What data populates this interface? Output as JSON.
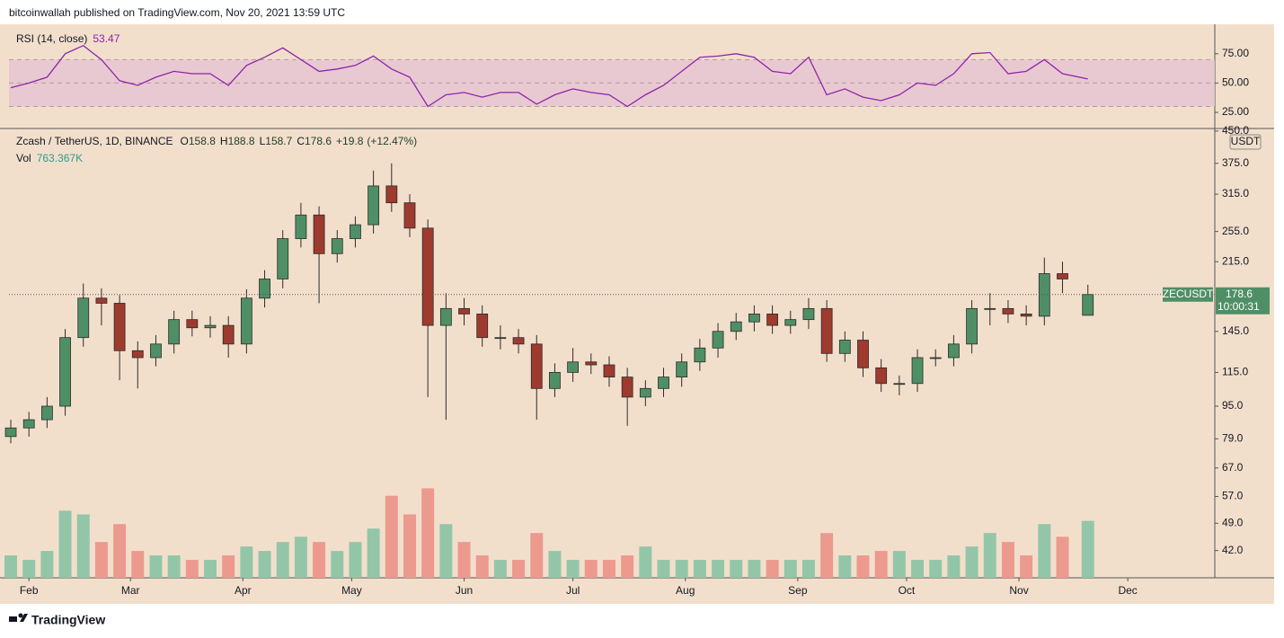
{
  "header": {
    "publisher": "bitcoinwallah published on TradingView.com, Nov 20, 2021 13:59 UTC"
  },
  "footer": {
    "brand": "TradingView"
  },
  "chart_data": [
    {
      "type": "line",
      "title": "RSI (14, close)",
      "color": "#8e24aa",
      "band_color": "#e8c6d2",
      "values": [
        46,
        50,
        55,
        75,
        82,
        70,
        52,
        48,
        55,
        60,
        58,
        58,
        48,
        65,
        72,
        80,
        70,
        60,
        62,
        65,
        73,
        62,
        55,
        30,
        40,
        42,
        38,
        42,
        42,
        32,
        40,
        45,
        42,
        40,
        30,
        40,
        48,
        60,
        72,
        73,
        75,
        72,
        60,
        58,
        72,
        40,
        45,
        38,
        35,
        40,
        50,
        48,
        58,
        75,
        76,
        58,
        60,
        70,
        58,
        53.47
      ],
      "ylim": [
        12,
        94
      ],
      "yticks": [
        {
          "value": 25,
          "label": "25.00"
        },
        {
          "value": 50,
          "label": "50.00"
        },
        {
          "value": 75,
          "label": "75.00"
        }
      ],
      "band": [
        30,
        70
      ],
      "midline": 50
    },
    {
      "type": "candlestick",
      "title": "Zcash / TetherUS, 1D, BINANCE",
      "ohlc_labels": [
        "O",
        "H",
        "L",
        "C"
      ],
      "change": "+19.8",
      "change_pct": "(+12.47%)",
      "symbol": "ZECUSDT",
      "currency": "USDT",
      "countdown": "10:00:31",
      "up_color": "#4f8f66",
      "down_color": "#9e3a2e",
      "log_scale": true,
      "x": [
        0,
        5,
        10,
        15,
        20,
        25,
        30,
        35,
        40,
        45,
        50,
        55,
        60,
        65,
        70,
        75,
        80,
        85,
        90,
        95,
        100,
        105,
        110,
        115,
        120,
        125,
        130,
        135,
        140,
        145,
        150,
        155,
        160,
        165,
        170,
        175,
        180,
        185,
        190,
        195,
        200,
        205,
        210,
        215,
        220,
        225,
        230,
        235,
        240,
        245,
        250,
        255,
        260,
        265,
        270,
        275,
        280,
        285,
        290,
        297
      ],
      "xlim": [
        -0.5,
        332
      ],
      "xticks": [
        {
          "value": 5,
          "label": "Feb"
        },
        {
          "value": 33,
          "label": "Mar"
        },
        {
          "value": 64,
          "label": "Apr"
        },
        {
          "value": 94,
          "label": "May"
        },
        {
          "value": 125,
          "label": "Jun"
        },
        {
          "value": 155,
          "label": "Jul"
        },
        {
          "value": 186,
          "label": "Aug"
        },
        {
          "value": 217,
          "label": "Sep"
        },
        {
          "value": 247,
          "label": "Oct"
        },
        {
          "value": 278,
          "label": "Nov"
        },
        {
          "value": 308,
          "label": "Dec"
        }
      ],
      "open": [
        80,
        84,
        88,
        95,
        140,
        175,
        170,
        130,
        125,
        135,
        155,
        148,
        150,
        135,
        175,
        195,
        245,
        280,
        225,
        245,
        265,
        330,
        300,
        260,
        150,
        165,
        160,
        140,
        140,
        135,
        105,
        115,
        122,
        120,
        112,
        100,
        105,
        112,
        122,
        132,
        145,
        153,
        160,
        150,
        155,
        165,
        128,
        138,
        118,
        108,
        108,
        125,
        125,
        135,
        165,
        165,
        160,
        158,
        201,
        158.8
      ],
      "high": [
        88,
        92,
        100,
        147,
        190,
        185,
        178,
        137,
        142,
        163,
        163,
        158,
        158,
        184,
        205,
        257,
        300,
        294,
        257,
        278,
        360,
        375,
        315,
        273,
        180,
        175,
        168,
        150,
        147,
        142,
        121,
        132,
        128,
        126,
        118,
        110,
        118,
        128,
        139,
        152,
        161,
        168,
        168,
        163,
        175,
        173,
        145,
        145,
        124,
        113,
        131,
        131,
        142,
        173,
        180,
        173,
        168,
        220,
        215,
        188.8
      ],
      "low": [
        77,
        80,
        84,
        90,
        133,
        150,
        110,
        105,
        119,
        128,
        141,
        140,
        125,
        128,
        166,
        185,
        233,
        170,
        214,
        233,
        252,
        285,
        247,
        100,
        88,
        150,
        133,
        131,
        128,
        88,
        100,
        109,
        114,
        106,
        85,
        95,
        100,
        106,
        116,
        125,
        138,
        145,
        143,
        143,
        147,
        122,
        122,
        112,
        103,
        101,
        103,
        119,
        119,
        128,
        150,
        152,
        150,
        150,
        180,
        158.7
      ],
      "close": [
        84,
        88,
        95,
        140,
        175,
        170,
        130,
        125,
        135,
        155,
        148,
        150,
        135,
        175,
        195,
        245,
        280,
        225,
        245,
        265,
        330,
        300,
        260,
        150,
        165,
        160,
        140,
        140,
        135,
        105,
        115,
        122,
        120,
        112,
        100,
        105,
        112,
        122,
        132,
        145,
        153,
        160,
        150,
        155,
        165,
        128,
        138,
        118,
        108,
        108,
        125,
        125,
        135,
        165,
        165,
        160,
        158,
        201,
        195,
        178.6
      ],
      "ylim": [
        36,
        452
      ],
      "yticks": [
        {
          "value": 450,
          "label": "450.0"
        },
        {
          "value": 375,
          "label": "375.0"
        },
        {
          "value": 315,
          "label": "315.0"
        },
        {
          "value": 255,
          "label": "255.0"
        },
        {
          "value": 215,
          "label": "215.0"
        },
        {
          "value": 145,
          "label": "145.0"
        },
        {
          "value": 115,
          "label": "115.0"
        },
        {
          "value": 95,
          "label": "95.0"
        },
        {
          "value": 79,
          "label": "79.0"
        },
        {
          "value": 67,
          "label": "67.0"
        },
        {
          "value": 57,
          "label": "57.0"
        },
        {
          "value": 49,
          "label": "49.0"
        },
        {
          "value": 42,
          "label": "42.0"
        }
      ],
      "volume": {
        "title": "Vol",
        "up_color": "#93c6a8",
        "down_color": "#ec9a8e",
        "ylim": [
          0,
          6000
        ],
        "values": [
          300,
          240,
          360,
          900,
          850,
          480,
          720,
          360,
          300,
          300,
          240,
          240,
          300,
          420,
          360,
          480,
          550,
          480,
          360,
          480,
          660,
          1100,
          850,
          1200,
          720,
          480,
          300,
          240,
          240,
          600,
          360,
          240,
          240,
          240,
          300,
          420,
          240,
          240,
          240,
          240,
          240,
          240,
          240,
          240,
          240,
          600,
          300,
          300,
          360,
          360,
          240,
          240,
          300,
          420,
          600,
          480,
          300,
          720,
          550,
          763.367
        ],
        "value_labels": [
          null,
          null,
          null,
          null,
          null,
          null,
          null,
          null,
          null,
          null,
          null,
          null,
          null,
          null,
          null,
          null,
          null,
          null,
          null,
          null,
          null,
          null,
          null,
          null,
          null,
          null,
          null,
          null,
          null,
          null,
          null,
          null,
          null,
          null,
          null,
          null,
          null,
          null,
          null,
          null,
          null,
          null,
          null,
          null,
          null,
          null,
          null,
          null,
          null,
          null,
          null,
          null,
          null,
          null,
          null,
          null,
          null,
          null,
          null,
          "763.367K"
        ]
      }
    }
  ]
}
